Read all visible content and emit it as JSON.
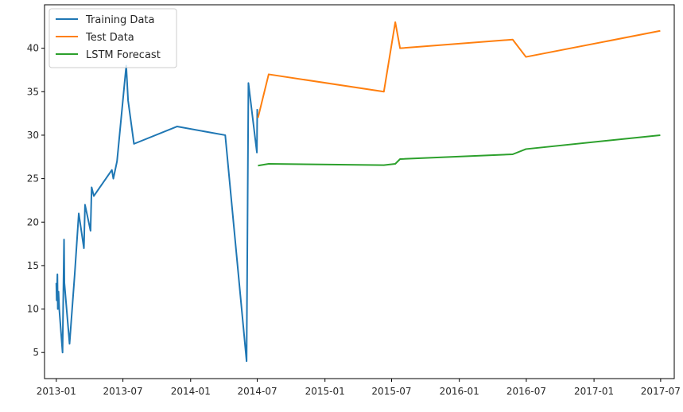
{
  "chart_data": {
    "type": "line",
    "title": "",
    "xlabel": "",
    "ylabel": "",
    "x_type": "date",
    "xlim": [
      "2012-11-30",
      "2017-08-07"
    ],
    "ylim": [
      2.0,
      45.0
    ],
    "x_ticks": [
      "2013-01",
      "2013-07",
      "2014-01",
      "2014-07",
      "2015-01",
      "2015-07",
      "2016-01",
      "2016-07",
      "2017-01",
      "2017-07"
    ],
    "y_ticks": [
      5,
      10,
      15,
      20,
      25,
      30,
      35,
      40
    ],
    "grid": false,
    "legend": {
      "position": "top-left"
    },
    "series": [
      {
        "name": "Training Data",
        "color": "#1f77b4",
        "points": [
          {
            "x": "2013-01-01",
            "y": 13
          },
          {
            "x": "2013-01-02",
            "y": 11
          },
          {
            "x": "2013-01-04",
            "y": 14
          },
          {
            "x": "2013-01-05",
            "y": 10
          },
          {
            "x": "2013-01-07",
            "y": 12
          },
          {
            "x": "2013-01-09",
            "y": 10
          },
          {
            "x": "2013-01-18",
            "y": 5
          },
          {
            "x": "2013-01-22",
            "y": 18
          },
          {
            "x": "2013-01-23",
            "y": 13
          },
          {
            "x": "2013-02-06",
            "y": 6
          },
          {
            "x": "2013-02-20",
            "y": 14
          },
          {
            "x": "2013-03-03",
            "y": 21
          },
          {
            "x": "2013-03-17",
            "y": 17
          },
          {
            "x": "2013-03-20",
            "y": 22
          },
          {
            "x": "2013-04-04",
            "y": 19
          },
          {
            "x": "2013-04-07",
            "y": 24
          },
          {
            "x": "2013-04-13",
            "y": 23
          },
          {
            "x": "2013-06-01",
            "y": 26
          },
          {
            "x": "2013-06-05",
            "y": 25
          },
          {
            "x": "2013-06-15",
            "y": 27
          },
          {
            "x": "2013-07-10",
            "y": 38
          },
          {
            "x": "2013-07-15",
            "y": 34
          },
          {
            "x": "2013-07-31",
            "y": 29
          },
          {
            "x": "2013-11-25",
            "y": 31
          },
          {
            "x": "2014-04-05",
            "y": 30
          },
          {
            "x": "2014-06-02",
            "y": 4
          },
          {
            "x": "2014-06-07",
            "y": 36
          },
          {
            "x": "2014-06-30",
            "y": 28
          },
          {
            "x": "2014-07-01",
            "y": 33
          }
        ]
      },
      {
        "name": "Test Data",
        "color": "#ff7f0e",
        "points": [
          {
            "x": "2014-07-03",
            "y": 32
          },
          {
            "x": "2014-08-01",
            "y": 37
          },
          {
            "x": "2015-06-10",
            "y": 35
          },
          {
            "x": "2015-07-11",
            "y": 43
          },
          {
            "x": "2015-07-24",
            "y": 40
          },
          {
            "x": "2016-05-25",
            "y": 41
          },
          {
            "x": "2016-06-30",
            "y": 39
          },
          {
            "x": "2017-06-30",
            "y": 42
          }
        ]
      },
      {
        "name": "LSTM Forecast",
        "color": "#2ca02c",
        "points": [
          {
            "x": "2014-07-03",
            "y": 26.5
          },
          {
            "x": "2014-08-01",
            "y": 26.7
          },
          {
            "x": "2015-06-10",
            "y": 26.55
          },
          {
            "x": "2015-07-11",
            "y": 26.7
          },
          {
            "x": "2015-07-24",
            "y": 27.25
          },
          {
            "x": "2016-05-25",
            "y": 27.8
          },
          {
            "x": "2016-06-30",
            "y": 28.4
          },
          {
            "x": "2017-06-30",
            "y": 30
          }
        ]
      }
    ]
  }
}
